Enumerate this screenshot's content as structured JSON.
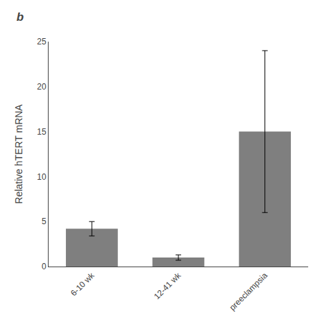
{
  "chart_data": {
    "type": "bar",
    "title": "b",
    "categories": [
      "6-10 wk",
      "12-41 wk",
      "preeclampsia"
    ],
    "values": [
      4.2,
      1.0,
      15.0
    ],
    "errors": [
      0.8,
      0.3,
      9.0
    ],
    "color": "#7f7f7f",
    "ylabel": "Relative hTERT mRNA",
    "ylim": [
      0,
      25
    ],
    "yticks": [
      0,
      5,
      10,
      15,
      20,
      25
    ],
    "grid": false
  }
}
